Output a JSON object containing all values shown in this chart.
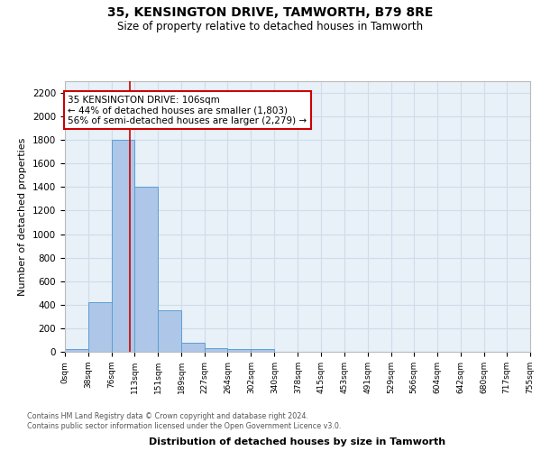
{
  "title1": "35, KENSINGTON DRIVE, TAMWORTH, B79 8RE",
  "title2": "Size of property relative to detached houses in Tamworth",
  "xlabel": "Distribution of detached houses by size in Tamworth",
  "ylabel": "Number of detached properties",
  "bin_edges": [
    0,
    38,
    76,
    113,
    151,
    189,
    227,
    264,
    302,
    340,
    378,
    415,
    453,
    491,
    529,
    566,
    604,
    642,
    680,
    717,
    755
  ],
  "bar_heights": [
    20,
    420,
    1800,
    1400,
    350,
    75,
    30,
    20,
    20,
    0,
    0,
    0,
    0,
    0,
    0,
    0,
    0,
    0,
    0,
    0
  ],
  "bar_color": "#aec6e8",
  "bar_edgecolor": "#5a9fd4",
  "grid_color": "#d0dce8",
  "ax_facecolor": "#e8f0f8",
  "background_color": "#ffffff",
  "property_line_x": 106,
  "property_line_color": "#cc0000",
  "ylim": [
    0,
    2300
  ],
  "yticks": [
    0,
    200,
    400,
    600,
    800,
    1000,
    1200,
    1400,
    1600,
    1800,
    2000,
    2200
  ],
  "annotation_text": "35 KENSINGTON DRIVE: 106sqm\n← 44% of detached houses are smaller (1,803)\n56% of semi-detached houses are larger (2,279) →",
  "annotation_box_color": "#ffffff",
  "annotation_box_edgecolor": "#cc0000",
  "footer_text": "Contains HM Land Registry data © Crown copyright and database right 2024.\nContains public sector information licensed under the Open Government Licence v3.0.",
  "tick_labels": [
    "0sqm",
    "38sqm",
    "76sqm",
    "113sqm",
    "151sqm",
    "189sqm",
    "227sqm",
    "264sqm",
    "302sqm",
    "340sqm",
    "378sqm",
    "415sqm",
    "453sqm",
    "491sqm",
    "529sqm",
    "566sqm",
    "604sqm",
    "642sqm",
    "680sqm",
    "717sqm",
    "755sqm"
  ]
}
